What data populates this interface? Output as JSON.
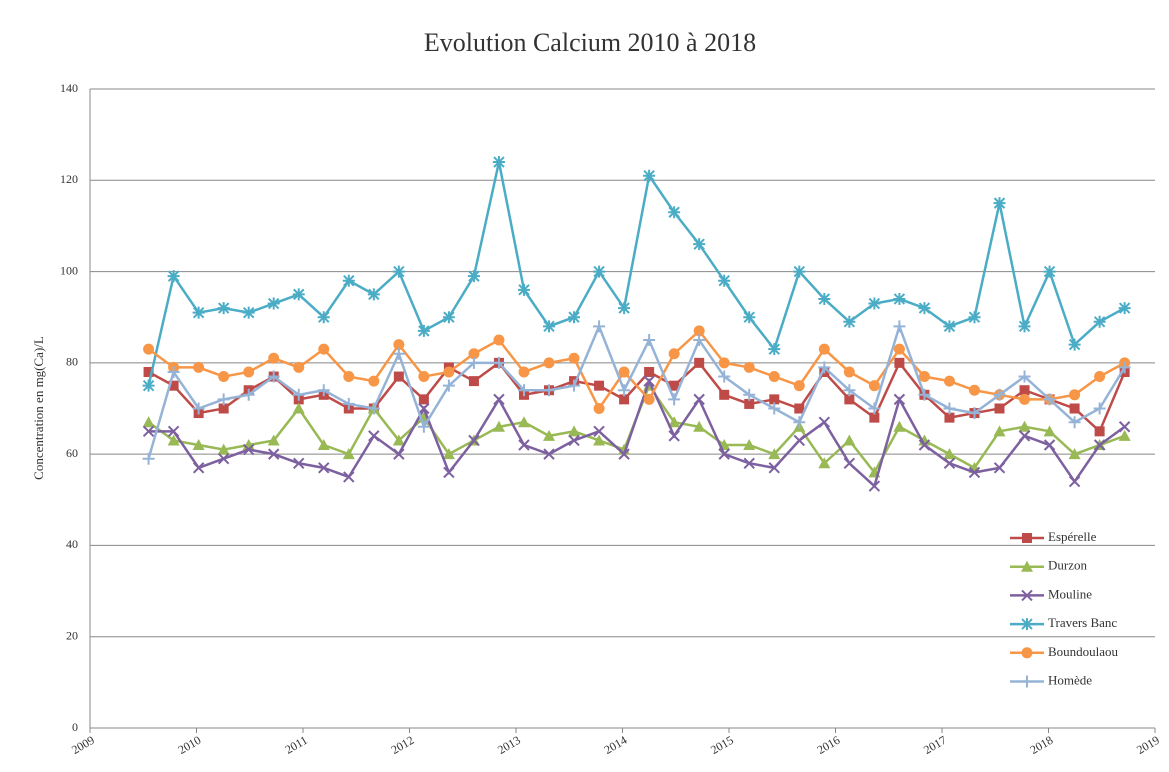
{
  "chart_data": {
    "type": "line",
    "title": "Evolution Calcium 2010 à 2018",
    "y_label": "Concentration en mg(Ca)/L",
    "x": [
      2009.55,
      2009.785,
      2010.02,
      2010.255,
      2010.49,
      2010.725,
      2010.96,
      2011.195,
      2011.43,
      2011.665,
      2011.9,
      2012.135,
      2012.37,
      2012.605,
      2012.84,
      2013.075,
      2013.31,
      2013.545,
      2013.78,
      2014.015,
      2014.25,
      2014.485,
      2014.72,
      2014.955,
      2015.19,
      2015.425,
      2015.66,
      2015.895,
      2016.13,
      2016.365,
      2016.6,
      2016.835,
      2017.07,
      2017.305,
      2017.54,
      2017.775,
      2018.01,
      2018.245,
      2018.48,
      2018.715
    ],
    "xlim": [
      2009,
      2019
    ],
    "xticks": [
      2009,
      2010,
      2011,
      2012,
      2013,
      2014,
      2015,
      2016,
      2017,
      2018,
      2019
    ],
    "ylim": [
      0,
      140
    ],
    "yticks": [
      0,
      20,
      40,
      60,
      80,
      100,
      120,
      140
    ],
    "grid": true,
    "legend": "right",
    "series": [
      {
        "name": "Espérelle",
        "color": "#be4b48",
        "marker": "square",
        "values": [
          78,
          75,
          69,
          70,
          74,
          77,
          72,
          73,
          70,
          70,
          77,
          72,
          79,
          76,
          80,
          73,
          74,
          76,
          75,
          72,
          78,
          75,
          80,
          73,
          71,
          72,
          70,
          78,
          72,
          68,
          80,
          73,
          68,
          69,
          70,
          74,
          72,
          70,
          65,
          78
        ]
      },
      {
        "name": "Durzon",
        "color": "#98b954",
        "marker": "triangle",
        "values": [
          67,
          63,
          62,
          61,
          62,
          63,
          70,
          62,
          60,
          70,
          63,
          68,
          60,
          63,
          66,
          67,
          64,
          65,
          63,
          61,
          75,
          67,
          66,
          62,
          62,
          60,
          66,
          58,
          63,
          56,
          66,
          63,
          60,
          57,
          65,
          66,
          65,
          60,
          62,
          64
        ]
      },
      {
        "name": "Mouline",
        "color": "#7d60a0",
        "marker": "x",
        "values": [
          65,
          65,
          57,
          59,
          61,
          60,
          58,
          57,
          55,
          64,
          60,
          70,
          56,
          63,
          72,
          62,
          60,
          63,
          65,
          60,
          76,
          64,
          72,
          60,
          58,
          57,
          63,
          67,
          58,
          53,
          72,
          62,
          58,
          56,
          57,
          64,
          62,
          54,
          62,
          66
        ]
      },
      {
        "name": "Travers Banc",
        "color": "#4bacc6",
        "marker": "star",
        "values": [
          75,
          99,
          91,
          92,
          91,
          93,
          95,
          90,
          98,
          95,
          100,
          87,
          90,
          99,
          124,
          96,
          88,
          90,
          100,
          92,
          121,
          113,
          106,
          98,
          90,
          83,
          100,
          94,
          89,
          93,
          94,
          92,
          88,
          90,
          115,
          88,
          100,
          84,
          89,
          92
        ]
      },
      {
        "name": "Boundoulaou",
        "color": "#f79646",
        "marker": "circle",
        "values": [
          83,
          79,
          79,
          77,
          78,
          81,
          79,
          83,
          77,
          76,
          84,
          77,
          78,
          82,
          85,
          78,
          80,
          81,
          70,
          78,
          72,
          82,
          87,
          80,
          79,
          77,
          75,
          83,
          78,
          75,
          83,
          77,
          76,
          74,
          73,
          72,
          72,
          73,
          77,
          80
        ]
      },
      {
        "name": "Homède",
        "color": "#95b3d7",
        "marker": "plus",
        "values": [
          59,
          78,
          70,
          72,
          73,
          77,
          73,
          74,
          71,
          70,
          82,
          66,
          75,
          80,
          80,
          74,
          74,
          75,
          88,
          74,
          85,
          72,
          85,
          77,
          73,
          70,
          67,
          79,
          74,
          70,
          88,
          73,
          70,
          69,
          73,
          77,
          72,
          67,
          70,
          79
        ]
      }
    ]
  }
}
